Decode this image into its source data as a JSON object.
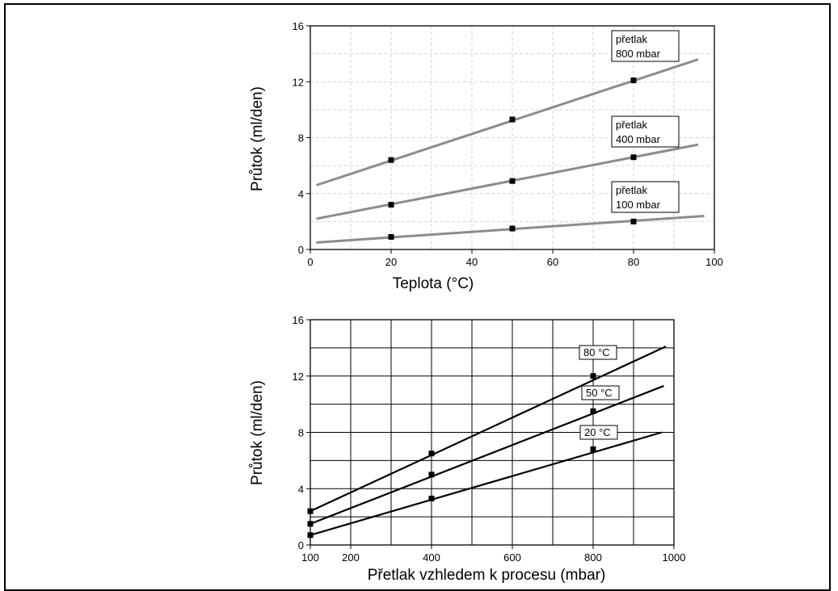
{
  "chart_data": [
    {
      "type": "line",
      "xlabel": "Teplota (°C)",
      "ylabel": "Průtok (ml/den)",
      "xlim": [
        0,
        100
      ],
      "ylim": [
        0,
        16
      ],
      "xticks": [
        "0",
        "20",
        "40",
        "60",
        "80",
        "100"
      ],
      "yticks": [
        "0",
        "4",
        "8",
        "12",
        "16"
      ],
      "grid": "dashed",
      "line_color": "#8c8c8c",
      "series": [
        {
          "name": "přetlak 800 mbar",
          "name_lines": [
            "přetlak",
            "800 mbar"
          ],
          "markers": [
            {
              "x": 20,
              "y": 6.4
            },
            {
              "x": 50,
              "y": 9.3
            },
            {
              "x": 80,
              "y": 12.1
            }
          ],
          "line": [
            {
              "x": 1.5,
              "y": 4.6
            },
            {
              "x": 96,
              "y": 13.6
            }
          ]
        },
        {
          "name": "přetlak 400 mbar",
          "name_lines": [
            "přetlak",
            "400 mbar"
          ],
          "markers": [
            {
              "x": 20,
              "y": 3.2
            },
            {
              "x": 50,
              "y": 4.9
            },
            {
              "x": 80,
              "y": 6.6
            }
          ],
          "line": [
            {
              "x": 1.5,
              "y": 2.2
            },
            {
              "x": 96,
              "y": 7.5
            }
          ]
        },
        {
          "name": "přetlak 100 mbar",
          "name_lines": [
            "přetlak",
            "100 mbar"
          ],
          "markers": [
            {
              "x": 20,
              "y": 0.9
            },
            {
              "x": 50,
              "y": 1.5
            },
            {
              "x": 80,
              "y": 2.0
            }
          ],
          "line": [
            {
              "x": 1.5,
              "y": 0.5
            },
            {
              "x": 97.5,
              "y": 2.4
            }
          ]
        }
      ]
    },
    {
      "type": "line",
      "xlabel": "Přetlak vzhledem k procesu (mbar)",
      "ylabel": "Průtok (ml/den)",
      "xlim": [
        100,
        1000
      ],
      "ylim": [
        0,
        16
      ],
      "xticks": [
        "100",
        "200",
        "400",
        "600",
        "800",
        "1000"
      ],
      "yticks": [
        "0",
        "4",
        "8",
        "12",
        "16"
      ],
      "grid": "solid",
      "line_color": "#000000",
      "series": [
        {
          "name": "80 °C",
          "markers": [
            {
              "x": 100,
              "y": 2.4
            },
            {
              "x": 400,
              "y": 6.5
            },
            {
              "x": 800,
              "y": 12.0
            }
          ],
          "line": [
            {
              "x": 100,
              "y": 2.4
            },
            {
              "x": 980,
              "y": 14.1
            }
          ]
        },
        {
          "name": "50 °C",
          "markers": [
            {
              "x": 100,
              "y": 1.5
            },
            {
              "x": 400,
              "y": 5.0
            },
            {
              "x": 800,
              "y": 9.5
            }
          ],
          "line": [
            {
              "x": 100,
              "y": 1.5
            },
            {
              "x": 975,
              "y": 11.3
            }
          ]
        },
        {
          "name": "20 °C",
          "markers": [
            {
              "x": 100,
              "y": 0.7
            },
            {
              "x": 400,
              "y": 3.3
            },
            {
              "x": 800,
              "y": 6.8
            }
          ],
          "line": [
            {
              "x": 100,
              "y": 0.7
            },
            {
              "x": 970,
              "y": 8.0
            }
          ]
        }
      ]
    }
  ]
}
